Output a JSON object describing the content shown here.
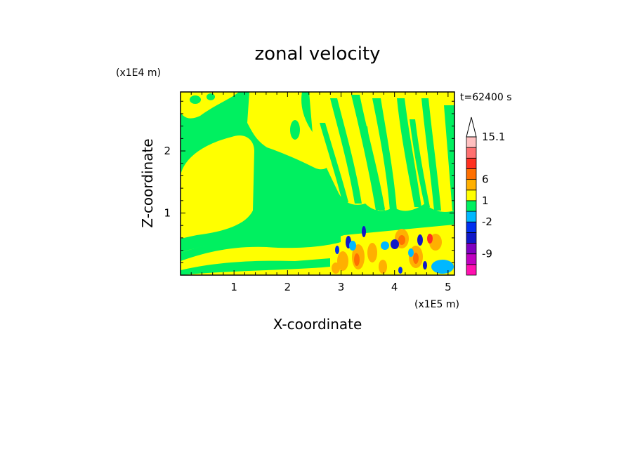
{
  "chart_data": {
    "type": "heatmap",
    "title": "zonal velocity",
    "xlabel": "X-coordinate",
    "ylabel": "Z-coordinate",
    "x_scale_label": "(x1E5 m)",
    "y_scale_label": "(x1E4 m)",
    "time_label": "t=62400 s",
    "xlim": [
      0,
      5.12
    ],
    "ylim": [
      0,
      2.95
    ],
    "x_ticks": [
      1,
      2,
      3,
      4,
      5
    ],
    "y_ticks": [
      1,
      2
    ],
    "colorbar": {
      "bins": [
        {
          "color": "#ff10b0"
        },
        {
          "color": "#c000c0"
        },
        {
          "color": "#8000c0"
        },
        {
          "color": "#1018c8"
        },
        {
          "color": "#0030f0"
        },
        {
          "color": "#00b8ff"
        },
        {
          "color": "#00f060"
        },
        {
          "color": "#ffff00"
        },
        {
          "color": "#ffb000"
        },
        {
          "color": "#ff7000"
        },
        {
          "color": "#ff3020"
        },
        {
          "color": "#ff7070"
        },
        {
          "color": "#ffc0c0"
        }
      ],
      "labels": [
        {
          "value": -9,
          "text": "-9"
        },
        {
          "value": -2,
          "text": "-2"
        },
        {
          "value": 1,
          "text": "1"
        },
        {
          "value": 6,
          "text": "6"
        },
        {
          "value": 15.1,
          "text": "15.1"
        }
      ],
      "extend": "max"
    },
    "colors": {
      "background": "#00f060",
      "main_fill": "#ffff00",
      "strong_positive": "#ff7000",
      "strong_negative": "#1018c8",
      "weak_negative": "#00b8ff"
    }
  }
}
